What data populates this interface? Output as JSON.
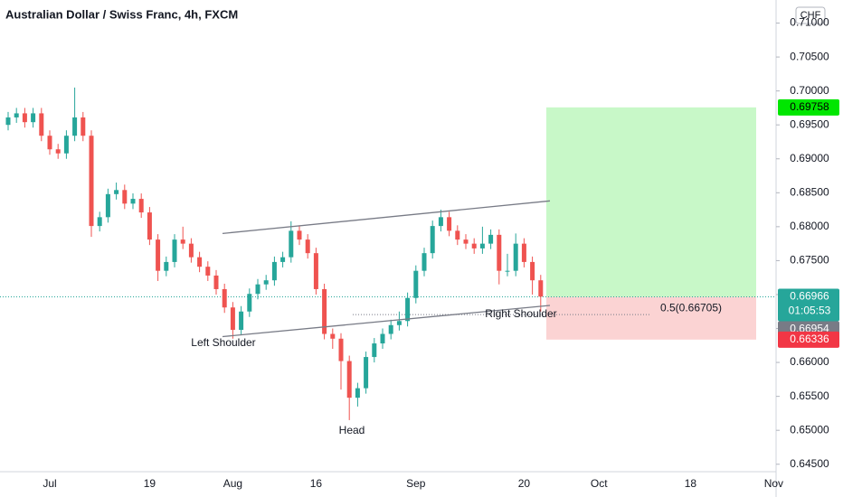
{
  "chart_data": {
    "type": "candlestick",
    "title": "Australian Dollar / Swiss Franc, 4h, FXCM",
    "currency": "CHF",
    "categories": [
      null,
      null,
      null,
      null,
      null,
      "Jul",
      null,
      null,
      null,
      null,
      null,
      null,
      null,
      null,
      null,
      null,
      null,
      "19",
      null,
      null,
      null,
      null,
      null,
      null,
      null,
      null,
      null,
      "Aug",
      null,
      null,
      null,
      null,
      null,
      null,
      null,
      null,
      null,
      "16",
      null,
      null,
      null,
      null,
      null,
      null,
      null,
      null,
      null,
      null,
      null,
      "Sep",
      null,
      null,
      null,
      null,
      null,
      null,
      null,
      null,
      null,
      null,
      null,
      null,
      "20",
      null,
      null,
      null,
      null,
      null,
      null,
      null,
      null,
      "Oct",
      null,
      null,
      null,
      null,
      null,
      null,
      null,
      null,
      null,
      null,
      "18",
      null,
      null,
      null,
      null,
      null,
      null,
      null,
      null,
      null,
      "Nov"
    ],
    "open": [
      0.695,
      0.6961,
      0.6967,
      0.6954,
      0.6967,
      0.6934,
      0.6914,
      0.6908,
      0.6934,
      0.6961,
      0.6934,
      0.6801,
      0.6814,
      0.6848,
      0.6854,
      0.6834,
      0.6841,
      0.6821,
      0.6781,
      0.6735,
      0.6748,
      0.6781,
      0.6775,
      0.6755,
      0.6741,
      0.6728,
      0.6708,
      0.6681,
      0.6648,
      0.6675,
      0.6701,
      0.6715,
      0.6721,
      0.6748,
      0.6755,
      0.6794,
      0.6781,
      0.6761,
      0.6708,
      0.6642,
      0.6635,
      0.6602,
      0.6548,
      0.6562,
      0.6608,
      0.6628,
      0.6642,
      0.6655,
      0.6661,
      0.6695,
      0.6735,
      0.6761,
      0.6801,
      0.6814,
      0.6794,
      0.6781,
      0.6775,
      0.6768,
      0.6775,
      0.6788,
      0.6735,
      0.6735,
      0.6775,
      0.6748,
      0.6721,
      null,
      null,
      null,
      null,
      null,
      null,
      null,
      null,
      null,
      null,
      null,
      null,
      null,
      null,
      null,
      null,
      null,
      null,
      null,
      null,
      null,
      null,
      null,
      null,
      null,
      null,
      null,
      null
    ],
    "high": [
      0.6969,
      0.6975,
      0.6975,
      0.6975,
      0.6975,
      0.6942,
      0.6922,
      0.6942,
      0.7005,
      0.6969,
      0.6942,
      0.6822,
      0.6856,
      0.6865,
      0.6862,
      0.6849,
      0.6849,
      0.6829,
      0.6789,
      0.6756,
      0.6789,
      0.68,
      0.6783,
      0.6763,
      0.6749,
      0.6736,
      0.6716,
      0.6689,
      0.6683,
      0.6709,
      0.6723,
      0.6729,
      0.6756,
      0.6763,
      0.6808,
      0.6802,
      0.6789,
      0.6769,
      0.6716,
      0.665,
      0.6643,
      0.661,
      0.657,
      0.6616,
      0.6636,
      0.665,
      0.6663,
      0.6675,
      0.6703,
      0.6743,
      0.6769,
      0.6809,
      0.6825,
      0.6822,
      0.6802,
      0.6789,
      0.6783,
      0.68,
      0.6796,
      0.6796,
      0.676,
      0.679,
      0.6783,
      0.6756,
      0.6729,
      null,
      null,
      null,
      null,
      null,
      null,
      null,
      null,
      null,
      null,
      null,
      null,
      null,
      null,
      null,
      null,
      null,
      null,
      null,
      null,
      null,
      null,
      null,
      null,
      null,
      null,
      null,
      null
    ],
    "low": [
      0.6942,
      0.6953,
      0.6946,
      0.6946,
      0.6926,
      0.6906,
      0.69,
      0.69,
      0.6926,
      0.6926,
      0.6785,
      0.6793,
      0.6806,
      0.684,
      0.6826,
      0.6826,
      0.6813,
      0.6773,
      0.672,
      0.6727,
      0.674,
      0.6767,
      0.6747,
      0.6733,
      0.672,
      0.67,
      0.6673,
      0.6635,
      0.664,
      0.6667,
      0.6693,
      0.6707,
      0.6713,
      0.674,
      0.6747,
      0.6773,
      0.6753,
      0.67,
      0.6634,
      0.662,
      0.656,
      0.6515,
      0.6535,
      0.6554,
      0.66,
      0.662,
      0.6634,
      0.6647,
      0.6653,
      0.6687,
      0.6727,
      0.6753,
      0.6793,
      0.6786,
      0.6773,
      0.6767,
      0.676,
      0.676,
      0.6767,
      0.6715,
      0.6727,
      0.6727,
      0.674,
      0.67,
      0.6675,
      null,
      null,
      null,
      null,
      null,
      null,
      null,
      null,
      null,
      null,
      null,
      null,
      null,
      null,
      null,
      null,
      null,
      null,
      null,
      null,
      null,
      null,
      null,
      null,
      null,
      null,
      null,
      null
    ],
    "close": [
      0.6961,
      0.6967,
      0.6954,
      0.6967,
      0.6934,
      0.6914,
      0.6908,
      0.6934,
      0.6961,
      0.6934,
      0.6801,
      0.6814,
      0.6848,
      0.6854,
      0.6834,
      0.6841,
      0.6821,
      0.6781,
      0.6735,
      0.6748,
      0.6781,
      0.6775,
      0.6755,
      0.6741,
      0.6728,
      0.6708,
      0.6681,
      0.6648,
      0.6675,
      0.6701,
      0.6715,
      0.6721,
      0.6748,
      0.6755,
      0.6794,
      0.6781,
      0.6761,
      0.6708,
      0.6642,
      0.6635,
      0.6602,
      0.6548,
      0.6562,
      0.6608,
      0.6628,
      0.6642,
      0.6655,
      0.6661,
      0.6695,
      0.6735,
      0.6761,
      0.6801,
      0.6814,
      0.6794,
      0.6781,
      0.6775,
      0.6768,
      0.6775,
      0.6788,
      0.6735,
      0.6735,
      0.6775,
      0.6748,
      0.6721,
      0.6697,
      null,
      null,
      null,
      null,
      null,
      null,
      null,
      null,
      null,
      null,
      null,
      null,
      null,
      null,
      null,
      null,
      null,
      null,
      null,
      null,
      null,
      null,
      null,
      null,
      null,
      null,
      null,
      null
    ],
    "up_color": "#26a69a",
    "down_color": "#ef5350",
    "ylim": [
      0.6439,
      0.7134
    ],
    "yticks": [
      {
        "value": 0.645,
        "label": "0.64500"
      },
      {
        "value": 0.65,
        "label": "0.65000"
      },
      {
        "value": 0.655,
        "label": "0.65500"
      },
      {
        "value": 0.66,
        "label": "0.66000"
      },
      {
        "value": 0.665,
        "label": "0.66500"
      },
      {
        "value": 0.67,
        "label": "0.67000"
      },
      {
        "value": 0.675,
        "label": "0.67500"
      },
      {
        "value": 0.68,
        "label": "0.68000"
      },
      {
        "value": 0.685,
        "label": "0.68500"
      },
      {
        "value": 0.69,
        "label": "0.69000"
      },
      {
        "value": 0.695,
        "label": "0.69500"
      },
      {
        "value": 0.7,
        "label": "0.70000"
      },
      {
        "value": 0.705,
        "label": "0.70500"
      },
      {
        "value": 0.71,
        "label": "0.71000"
      }
    ],
    "trendlines": [
      {
        "start": 0.679,
        "end": 0.6838
      },
      {
        "start": 0.6638,
        "end": 0.6684
      }
    ],
    "annotations": [
      {
        "text": "Left Shoulder",
        "price": 0.6628
      },
      {
        "text": "Head",
        "price": 0.6499
      },
      {
        "text": "Right Shoulder",
        "price": 0.6671
      }
    ],
    "fib_level": {
      "value": 0.66705,
      "label": "0.5(0.66705)"
    },
    "last_price": {
      "value": 0.66966,
      "countdown": "01:05:53"
    },
    "price_labels": [
      {
        "value": 0.69758,
        "color": "#00e600"
      },
      {
        "value": 0.66954,
        "color": "#787b86"
      },
      {
        "value": 0.66336,
        "color": "#f23645"
      }
    ]
  }
}
